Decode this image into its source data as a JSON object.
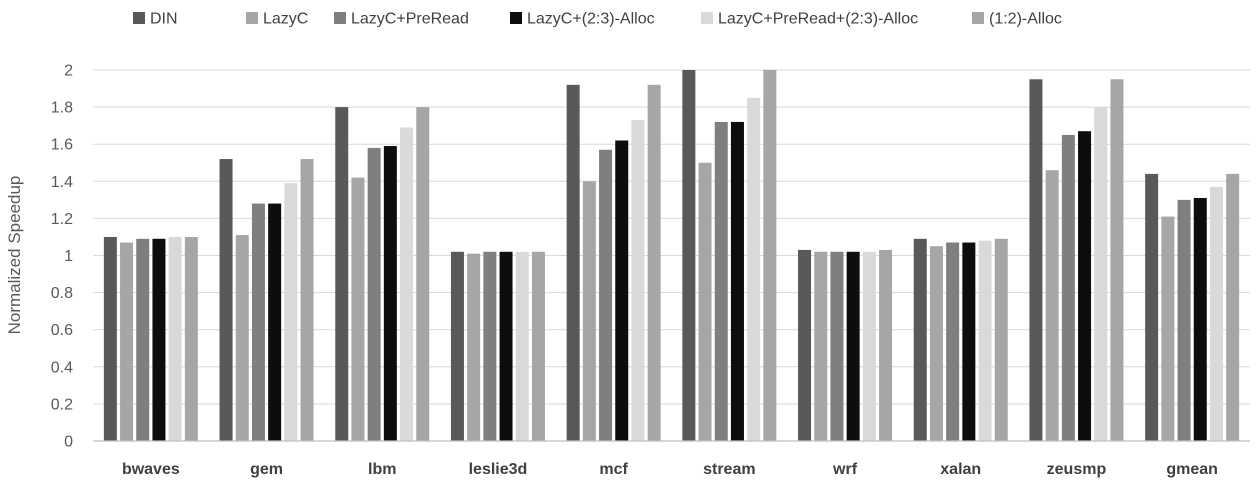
{
  "chart_data": {
    "type": "bar",
    "ylabel": "Normalized Speedup",
    "ylim": [
      0,
      2
    ],
    "yticks": [
      "0",
      "0.2",
      "0.4",
      "0.6",
      "0.8",
      "1",
      "1.2",
      "1.4",
      "1.6",
      "1.8",
      "2"
    ],
    "grid": true,
    "legend_position": "top",
    "categories": [
      "bwaves",
      "gem",
      "lbm",
      "leslie3d",
      "mcf",
      "stream",
      "wrf",
      "xalan",
      "zeusmp",
      "gmean"
    ],
    "series": [
      {
        "name": "DIN",
        "color": "#595959",
        "values": [
          1.1,
          1.52,
          1.8,
          1.02,
          1.92,
          2.0,
          1.03,
          1.09,
          1.95,
          1.44
        ]
      },
      {
        "name": "LazyC",
        "color": "#a6a6a6",
        "values": [
          1.07,
          1.11,
          1.42,
          1.01,
          1.4,
          1.5,
          1.02,
          1.05,
          1.46,
          1.21
        ]
      },
      {
        "name": "LazyC+PreRead",
        "color": "#7f7f7f",
        "values": [
          1.09,
          1.28,
          1.58,
          1.02,
          1.57,
          1.72,
          1.02,
          1.07,
          1.65,
          1.3
        ]
      },
      {
        "name": "LazyC+(2:3)-Alloc",
        "color": "#0d0d0d",
        "values": [
          1.09,
          1.28,
          1.59,
          1.02,
          1.62,
          1.72,
          1.02,
          1.07,
          1.67,
          1.31
        ]
      },
      {
        "name": "LazyC+PreRead+(2:3)-Alloc",
        "color": "#d9d9d9",
        "values": [
          1.1,
          1.39,
          1.69,
          1.02,
          1.73,
          1.85,
          1.02,
          1.08,
          1.8,
          1.37
        ]
      },
      {
        "name": "(1:2)-Alloc",
        "color": "#a6a6a6",
        "values": [
          1.1,
          1.52,
          1.8,
          1.02,
          1.92,
          2.0,
          1.03,
          1.09,
          1.95,
          1.44
        ]
      }
    ]
  }
}
